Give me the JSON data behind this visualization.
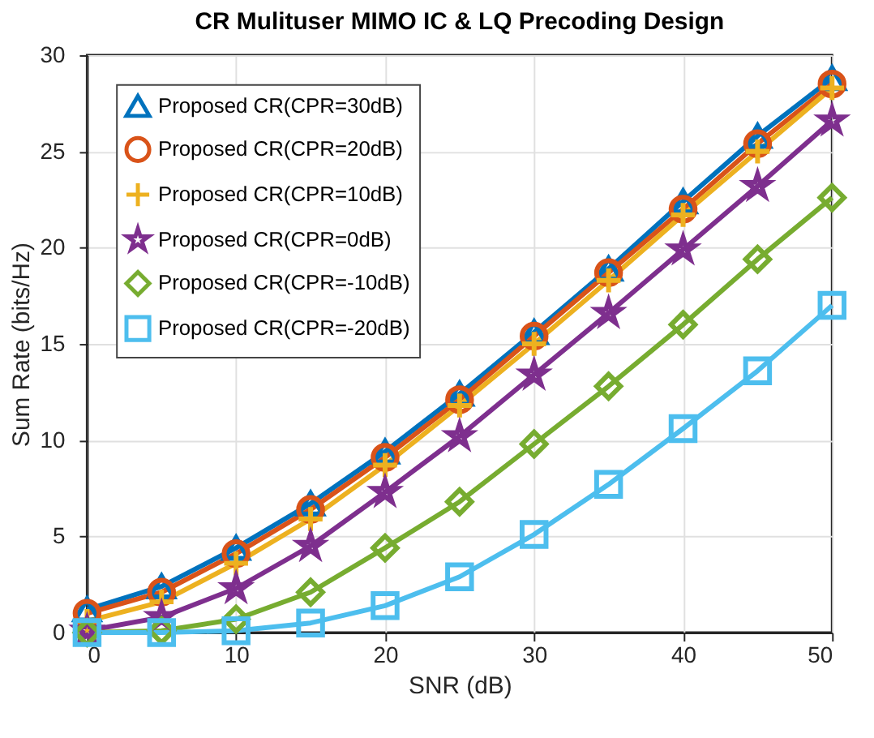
{
  "chart_data": {
    "type": "line",
    "title": "CR Mulituser MIMO IC & LQ Precoding Design",
    "xlabel": "SNR (dB)",
    "ylabel": "Sum Rate (bits/Hz)",
    "x": [
      0,
      5,
      10,
      15,
      20,
      25,
      30,
      35,
      40,
      45,
      50
    ],
    "series": [
      {
        "name": "Proposed CR(CPR=30dB)",
        "color": "#0072bd",
        "marker": "triangle",
        "values": [
          1.2,
          2.4,
          4.4,
          6.7,
          9.4,
          12.4,
          15.6,
          18.9,
          22.4,
          25.8,
          28.8
        ]
      },
      {
        "name": "Proposed CR(CPR=20dB)",
        "color": "#d95319",
        "marker": "circle",
        "values": [
          1.0,
          2.1,
          4.1,
          6.4,
          9.1,
          12.1,
          15.4,
          18.7,
          22.0,
          25.4,
          28.5
        ]
      },
      {
        "name": "Proposed CR(CPR=10dB)",
        "color": "#edb120",
        "marker": "cross",
        "values": [
          0.6,
          1.6,
          3.6,
          5.9,
          8.7,
          11.8,
          15.0,
          18.3,
          21.7,
          25.0,
          28.3
        ]
      },
      {
        "name": "Proposed CR(CPR=0dB)",
        "color": "#7e2f8e",
        "marker": "star",
        "values": [
          0.1,
          0.8,
          2.3,
          4.5,
          7.3,
          10.2,
          13.4,
          16.6,
          19.9,
          23.2,
          26.6
        ]
      },
      {
        "name": "Proposed CR(CPR=-10dB)",
        "color": "#77ac30",
        "marker": "diamond",
        "values": [
          0.0,
          0.1,
          0.7,
          2.1,
          4.4,
          6.8,
          9.8,
          12.8,
          16.0,
          19.4,
          22.6
        ]
      },
      {
        "name": "Proposed CR(CPR=-20dB)",
        "color": "#4dbeee",
        "marker": "square",
        "values": [
          0.0,
          0.0,
          0.1,
          0.5,
          1.4,
          2.9,
          5.1,
          7.7,
          10.6,
          13.6,
          17.0
        ]
      }
    ],
    "xlim": [
      0,
      50
    ],
    "xticks": [
      0,
      10,
      20,
      30,
      40,
      50
    ],
    "ylim": [
      0,
      30
    ],
    "yticks": [
      0,
      5,
      10,
      15,
      20,
      25,
      30
    ],
    "grid": true,
    "legend": "top left",
    "line_style": "solid"
  }
}
